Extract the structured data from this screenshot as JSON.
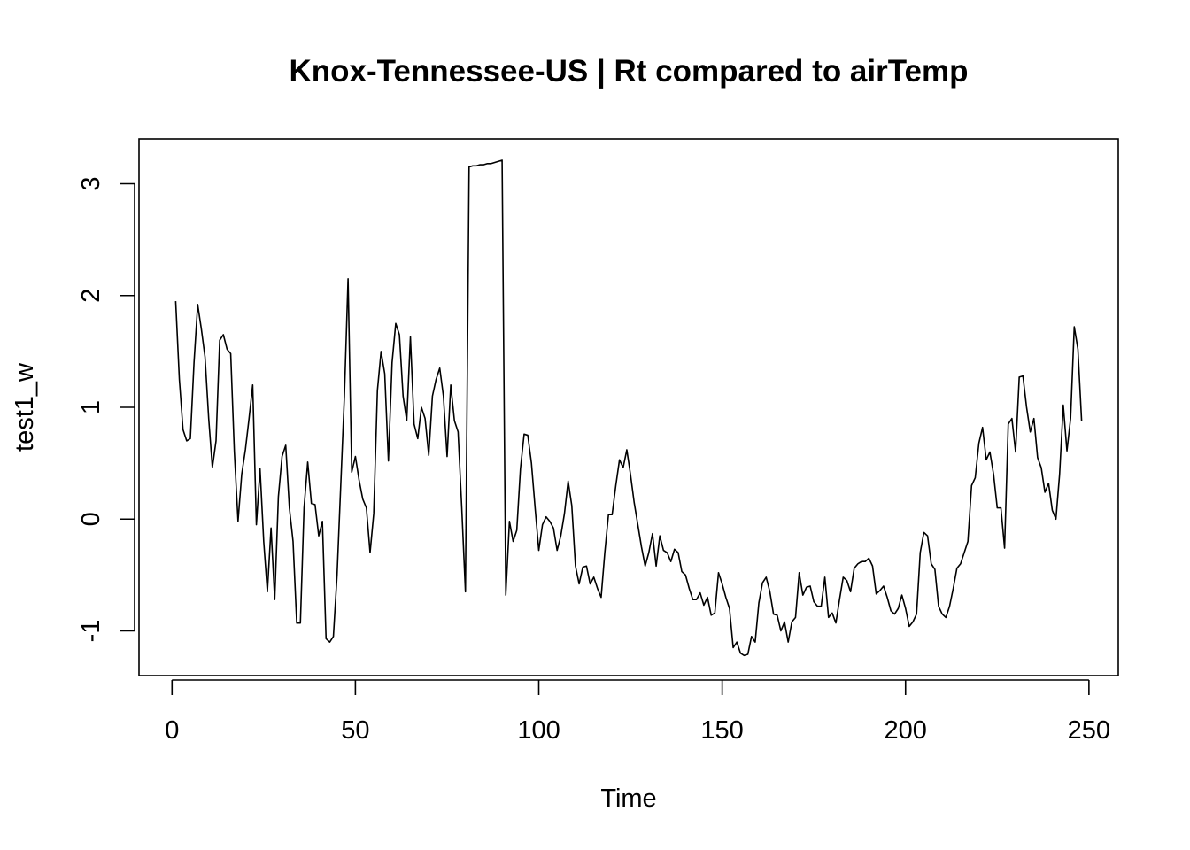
{
  "chart_data": {
    "type": "line",
    "title": "Knox-Tennessee-US | Rt compared to airTemp",
    "xlabel": "Time",
    "ylabel": "test1_w",
    "xlim": [
      -9,
      258
    ],
    "ylim": [
      -1.4,
      3.4
    ],
    "xticks": [
      0,
      50,
      100,
      150,
      200,
      250
    ],
    "yticks": [
      -1,
      0,
      1,
      2,
      3
    ],
    "xtick_labels": [
      "0",
      "50",
      "100",
      "150",
      "200",
      "250"
    ],
    "ytick_labels": [
      "-1",
      "0",
      "1",
      "2",
      "3"
    ],
    "grid": false,
    "line_color": "#000000",
    "series": [
      {
        "values": [
          1.95,
          1.25,
          0.8,
          0.7,
          0.72,
          1.4,
          1.92,
          1.7,
          1.45,
          0.9,
          0.46,
          0.7,
          1.6,
          1.65,
          1.52,
          1.48,
          0.6,
          -0.02,
          0.4,
          0.62,
          0.9,
          1.2,
          -0.05,
          0.45,
          -0.2,
          -0.65,
          -0.08,
          -0.72,
          0.2,
          0.56,
          0.66,
          0.1,
          -0.2,
          -0.93,
          -0.93,
          0.1,
          0.51,
          0.14,
          0.13,
          -0.15,
          -0.02,
          -1.07,
          -1.1,
          -1.05,
          -0.5,
          0.3,
          1.1,
          2.15,
          0.42,
          0.56,
          0.35,
          0.18,
          0.1,
          -0.3,
          0.05,
          1.15,
          1.5,
          1.3,
          0.52,
          1.4,
          1.75,
          1.65,
          1.1,
          0.88,
          1.63,
          0.85,
          0.72,
          1.0,
          0.9,
          0.57,
          1.1,
          1.25,
          1.35,
          1.1,
          0.56,
          1.2,
          0.88,
          0.78,
          0.1,
          -0.65,
          3.15,
          3.16,
          3.16,
          3.17,
          3.17,
          3.18,
          3.18,
          3.19,
          3.2,
          3.21,
          -0.68,
          -0.02,
          -0.2,
          -0.1,
          0.45,
          0.76,
          0.75,
          0.5,
          0.1,
          -0.28,
          -0.05,
          0.02,
          -0.02,
          -0.08,
          -0.28,
          -0.15,
          0.05,
          0.34,
          0.12,
          -0.42,
          -0.58,
          -0.43,
          -0.42,
          -0.58,
          -0.52,
          -0.62,
          -0.7,
          -0.3,
          0.04,
          0.04,
          0.3,
          0.53,
          0.46,
          0.62,
          0.4,
          0.15,
          -0.05,
          -0.25,
          -0.42,
          -0.3,
          -0.13,
          -0.42,
          -0.15,
          -0.28,
          -0.3,
          -0.38,
          -0.27,
          -0.3,
          -0.47,
          -0.5,
          -0.62,
          -0.72,
          -0.72,
          -0.66,
          -0.77,
          -0.7,
          -0.86,
          -0.84,
          -0.48,
          -0.58,
          -0.7,
          -0.8,
          -1.15,
          -1.1,
          -1.2,
          -1.22,
          -1.21,
          -1.05,
          -1.1,
          -0.75,
          -0.57,
          -0.52,
          -0.65,
          -0.85,
          -0.86,
          -1.0,
          -0.92,
          -1.1,
          -0.92,
          -0.88,
          -0.48,
          -0.68,
          -0.61,
          -0.6,
          -0.74,
          -0.78,
          -0.78,
          -0.52,
          -0.88,
          -0.84,
          -0.93,
          -0.72,
          -0.52,
          -0.55,
          -0.65,
          -0.44,
          -0.4,
          -0.38,
          -0.38,
          -0.35,
          -0.42,
          -0.67,
          -0.64,
          -0.6,
          -0.7,
          -0.82,
          -0.85,
          -0.8,
          -0.68,
          -0.8,
          -0.96,
          -0.92,
          -0.85,
          -0.3,
          -0.12,
          -0.15,
          -0.4,
          -0.45,
          -0.78,
          -0.85,
          -0.88,
          -0.78,
          -0.62,
          -0.44,
          -0.4,
          -0.3,
          -0.2,
          0.3,
          0.37,
          0.68,
          0.82,
          0.53,
          0.6,
          0.4,
          0.1,
          0.1,
          -0.26,
          0.85,
          0.9,
          0.6,
          1.27,
          1.28,
          1.0,
          0.78,
          0.9,
          0.55,
          0.46,
          0.24,
          0.32,
          0.08,
          0.0,
          0.4,
          1.02,
          0.61,
          0.9,
          1.72,
          1.52,
          0.88
        ]
      }
    ]
  }
}
